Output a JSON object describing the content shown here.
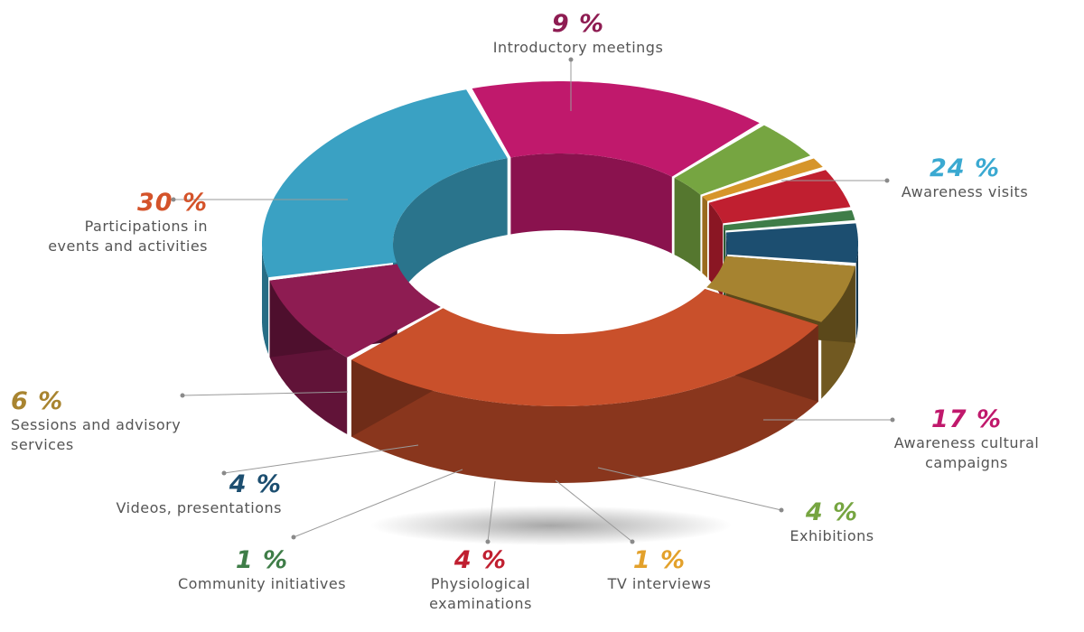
{
  "chart_data": {
    "type": "pie",
    "variant": "3d-donut",
    "categories": [
      "Introductory meetings",
      "Awareness visits",
      "Awareness cultural campaigns",
      "Exhibitions",
      "TV interviews",
      "Physiological examinations",
      "Community initiatives",
      "Videos, presentations",
      "Sessions and advisory services",
      "Participations in events and activities"
    ],
    "values": [
      9,
      24,
      17,
      4,
      1,
      4,
      1,
      4,
      6,
      30
    ],
    "percent_labels": [
      "9 %",
      "24 %",
      "17 %",
      "4 %",
      "1 %",
      "4 %",
      "1 %",
      "4 %",
      "6 %",
      "30 %"
    ],
    "name_lines": [
      [
        "Introductory meetings"
      ],
      [
        "Awareness visits"
      ],
      [
        "Awareness cultural",
        "campaigns"
      ],
      [
        "Exhibitions"
      ],
      [
        "TV interviews"
      ],
      [
        "Physiological",
        "examinations"
      ],
      [
        "Community initiatives"
      ],
      [
        "Videos, presentations"
      ],
      [
        "Sessions and advisory",
        "services"
      ],
      [
        "Participations in",
        "events and activities"
      ]
    ],
    "colors": [
      "#8e1c52",
      "#3aa1c3",
      "#c0196c",
      "#76a541",
      "#d6952a",
      "#c01f30",
      "#3f7d48",
      "#1c4e70",
      "#a68330",
      "#c9502b"
    ],
    "percent_colors": [
      "#8e1c52",
      "#3aa9d1",
      "#c0196c",
      "#76a541",
      "#e3a12b",
      "#c01f30",
      "#3f7d48",
      "#1c4e70",
      "#a88430",
      "#d4532a"
    ],
    "legend": "none"
  }
}
